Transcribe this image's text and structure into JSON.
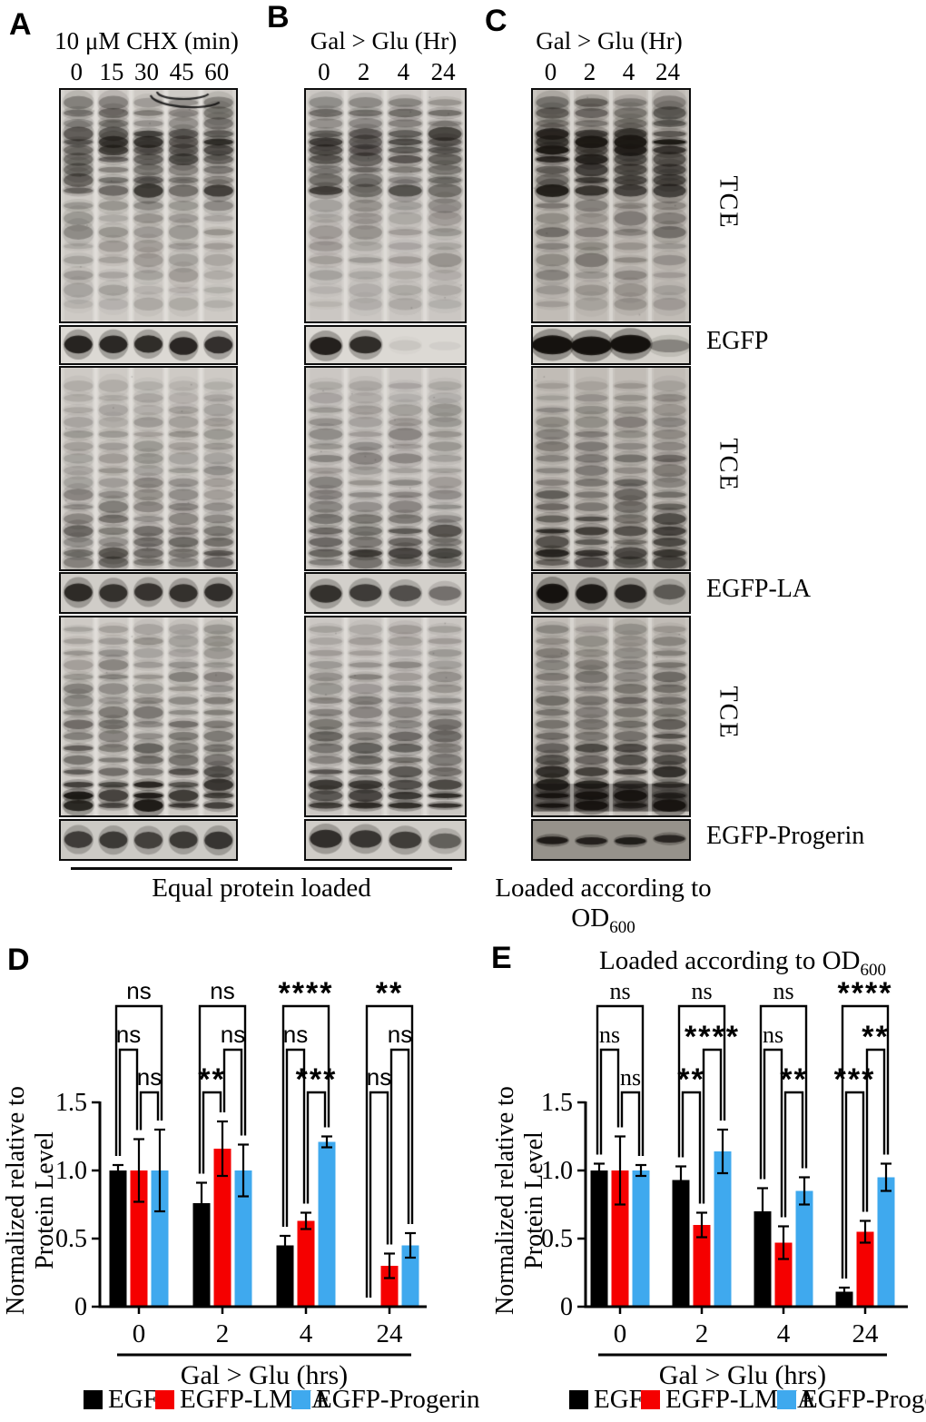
{
  "blot_section": {
    "panels": [
      {
        "letter": "A",
        "title": "10 μM CHX (min)",
        "lanes": [
          "0",
          "15",
          "30",
          "45",
          "60"
        ]
      },
      {
        "letter": "B",
        "title": "Gal > Glu (Hr)",
        "lanes": [
          "0",
          "2",
          "4",
          "24"
        ]
      },
      {
        "letter": "C",
        "title": "Gal > Glu (Hr)",
        "lanes": [
          "0",
          "2",
          "4",
          "24"
        ]
      }
    ],
    "row_labels": [
      "TCE",
      "EGFP",
      "TCE",
      "EGFP-LA",
      "TCE",
      "EGFP-Progerin"
    ],
    "caption_ab": "Equal protein loaded",
    "caption_c_base": "Loaded according to OD",
    "caption_c_sub": "600"
  },
  "chart_data": [
    {
      "id": "D",
      "panel_letter": "D",
      "type": "bar",
      "title": "",
      "categories": [
        "0",
        "2",
        "4",
        "24"
      ],
      "xlabel": "Gal > Glu (hrs)",
      "ylabel_lines": [
        "Normalized relative to",
        "Protein Level"
      ],
      "ytick_labels": [
        "0",
        "0.5",
        "1.0",
        "1.5"
      ],
      "yticks": [
        0,
        0.5,
        1.0,
        1.5
      ],
      "ylim": [
        0,
        1.5
      ],
      "ns_font": "sans",
      "series": [
        {
          "name": "EGFP",
          "color": "#000000",
          "values": [
            1.0,
            0.76,
            0.45,
            0.0
          ],
          "errors": [
            0.04,
            0.15,
            0.07,
            0.0
          ]
        },
        {
          "name": "EGFP-LMNA",
          "color": "#f50000",
          "values": [
            1.0,
            1.16,
            0.63,
            0.3
          ],
          "errors": [
            0.23,
            0.2,
            0.06,
            0.09
          ]
        },
        {
          "name": "EGFP-Progerin",
          "color": "#3fa9ee",
          "values": [
            1.0,
            1.0,
            1.21,
            0.45
          ],
          "errors": [
            0.3,
            0.19,
            0.04,
            0.09
          ]
        }
      ],
      "significance": [
        {
          "comparisons": [
            {
              "level": 1,
              "a": 0,
              "b": 2,
              "label": "ns"
            },
            {
              "level": 2,
              "a": 0,
              "b": 1,
              "label": "ns"
            },
            {
              "level": 3,
              "a": 1,
              "b": 2,
              "label": "ns"
            }
          ]
        },
        {
          "comparisons": [
            {
              "level": 1,
              "a": 0,
              "b": 2,
              "label": "ns"
            },
            {
              "level": 2,
              "a": 1,
              "b": 2,
              "label": "ns"
            },
            {
              "level": 3,
              "a": 0,
              "b": 1,
              "label": "**"
            }
          ]
        },
        {
          "comparisons": [
            {
              "level": 1,
              "a": 0,
              "b": 2,
              "label": "****"
            },
            {
              "level": 2,
              "a": 0,
              "b": 1,
              "label": "ns"
            },
            {
              "level": 3,
              "a": 1,
              "b": 2,
              "label": "***"
            }
          ]
        },
        {
          "comparisons": [
            {
              "level": 1,
              "a": 0,
              "b": 2,
              "label": "**"
            },
            {
              "level": 2,
              "a": 1,
              "b": 2,
              "label": "ns"
            },
            {
              "level": 3,
              "a": 0,
              "b": 1,
              "label": "ns"
            }
          ]
        }
      ],
      "legend": [
        "EGFP",
        "EGFP-LMNA",
        "EGFP-Progerin"
      ]
    },
    {
      "id": "E",
      "panel_letter": "E",
      "type": "bar",
      "title_base": "Loaded according to OD",
      "title_sub": "600",
      "categories": [
        "0",
        "2",
        "4",
        "24"
      ],
      "xlabel": "Gal > Glu (hrs)",
      "ylabel_lines": [
        "Normalized relative to",
        "Protein Level"
      ],
      "ytick_labels": [
        "0",
        "0.5",
        "1.0",
        "1.5"
      ],
      "yticks": [
        0,
        0.5,
        1.0,
        1.5
      ],
      "ylim": [
        0,
        1.5
      ],
      "ns_font": "serif",
      "series": [
        {
          "name": "EGFP",
          "color": "#000000",
          "values": [
            1.0,
            0.93,
            0.7,
            0.11
          ],
          "errors": [
            0.05,
            0.1,
            0.17,
            0.03
          ]
        },
        {
          "name": "EGFP-LMNA",
          "color": "#f50000",
          "values": [
            1.0,
            0.6,
            0.47,
            0.55
          ],
          "errors": [
            0.25,
            0.09,
            0.12,
            0.08
          ]
        },
        {
          "name": "EGFP-Progerin",
          "color": "#3fa9ee",
          "values": [
            1.0,
            1.14,
            0.85,
            0.95
          ],
          "errors": [
            0.04,
            0.16,
            0.1,
            0.1
          ]
        }
      ],
      "significance": [
        {
          "comparisons": [
            {
              "level": 1,
              "a": 0,
              "b": 2,
              "label": "ns"
            },
            {
              "level": 2,
              "a": 0,
              "b": 1,
              "label": "ns"
            },
            {
              "level": 3,
              "a": 1,
              "b": 2,
              "label": "ns"
            }
          ]
        },
        {
          "comparisons": [
            {
              "level": 1,
              "a": 0,
              "b": 2,
              "label": "ns"
            },
            {
              "level": 2,
              "a": 1,
              "b": 2,
              "label": "****"
            },
            {
              "level": 3,
              "a": 0,
              "b": 1,
              "label": "**"
            }
          ]
        },
        {
          "comparisons": [
            {
              "level": 1,
              "a": 0,
              "b": 2,
              "label": "ns"
            },
            {
              "level": 2,
              "a": 0,
              "b": 1,
              "label": "ns"
            },
            {
              "level": 3,
              "a": 1,
              "b": 2,
              "label": "**"
            }
          ]
        },
        {
          "comparisons": [
            {
              "level": 1,
              "a": 0,
              "b": 2,
              "label": "****"
            },
            {
              "level": 2,
              "a": 1,
              "b": 2,
              "label": "**"
            },
            {
              "level": 3,
              "a": 0,
              "b": 1,
              "label": "***"
            }
          ]
        }
      ],
      "legend": [
        "EGFP",
        "EGFP-LMNA",
        "EGFP-Progerin"
      ]
    }
  ]
}
